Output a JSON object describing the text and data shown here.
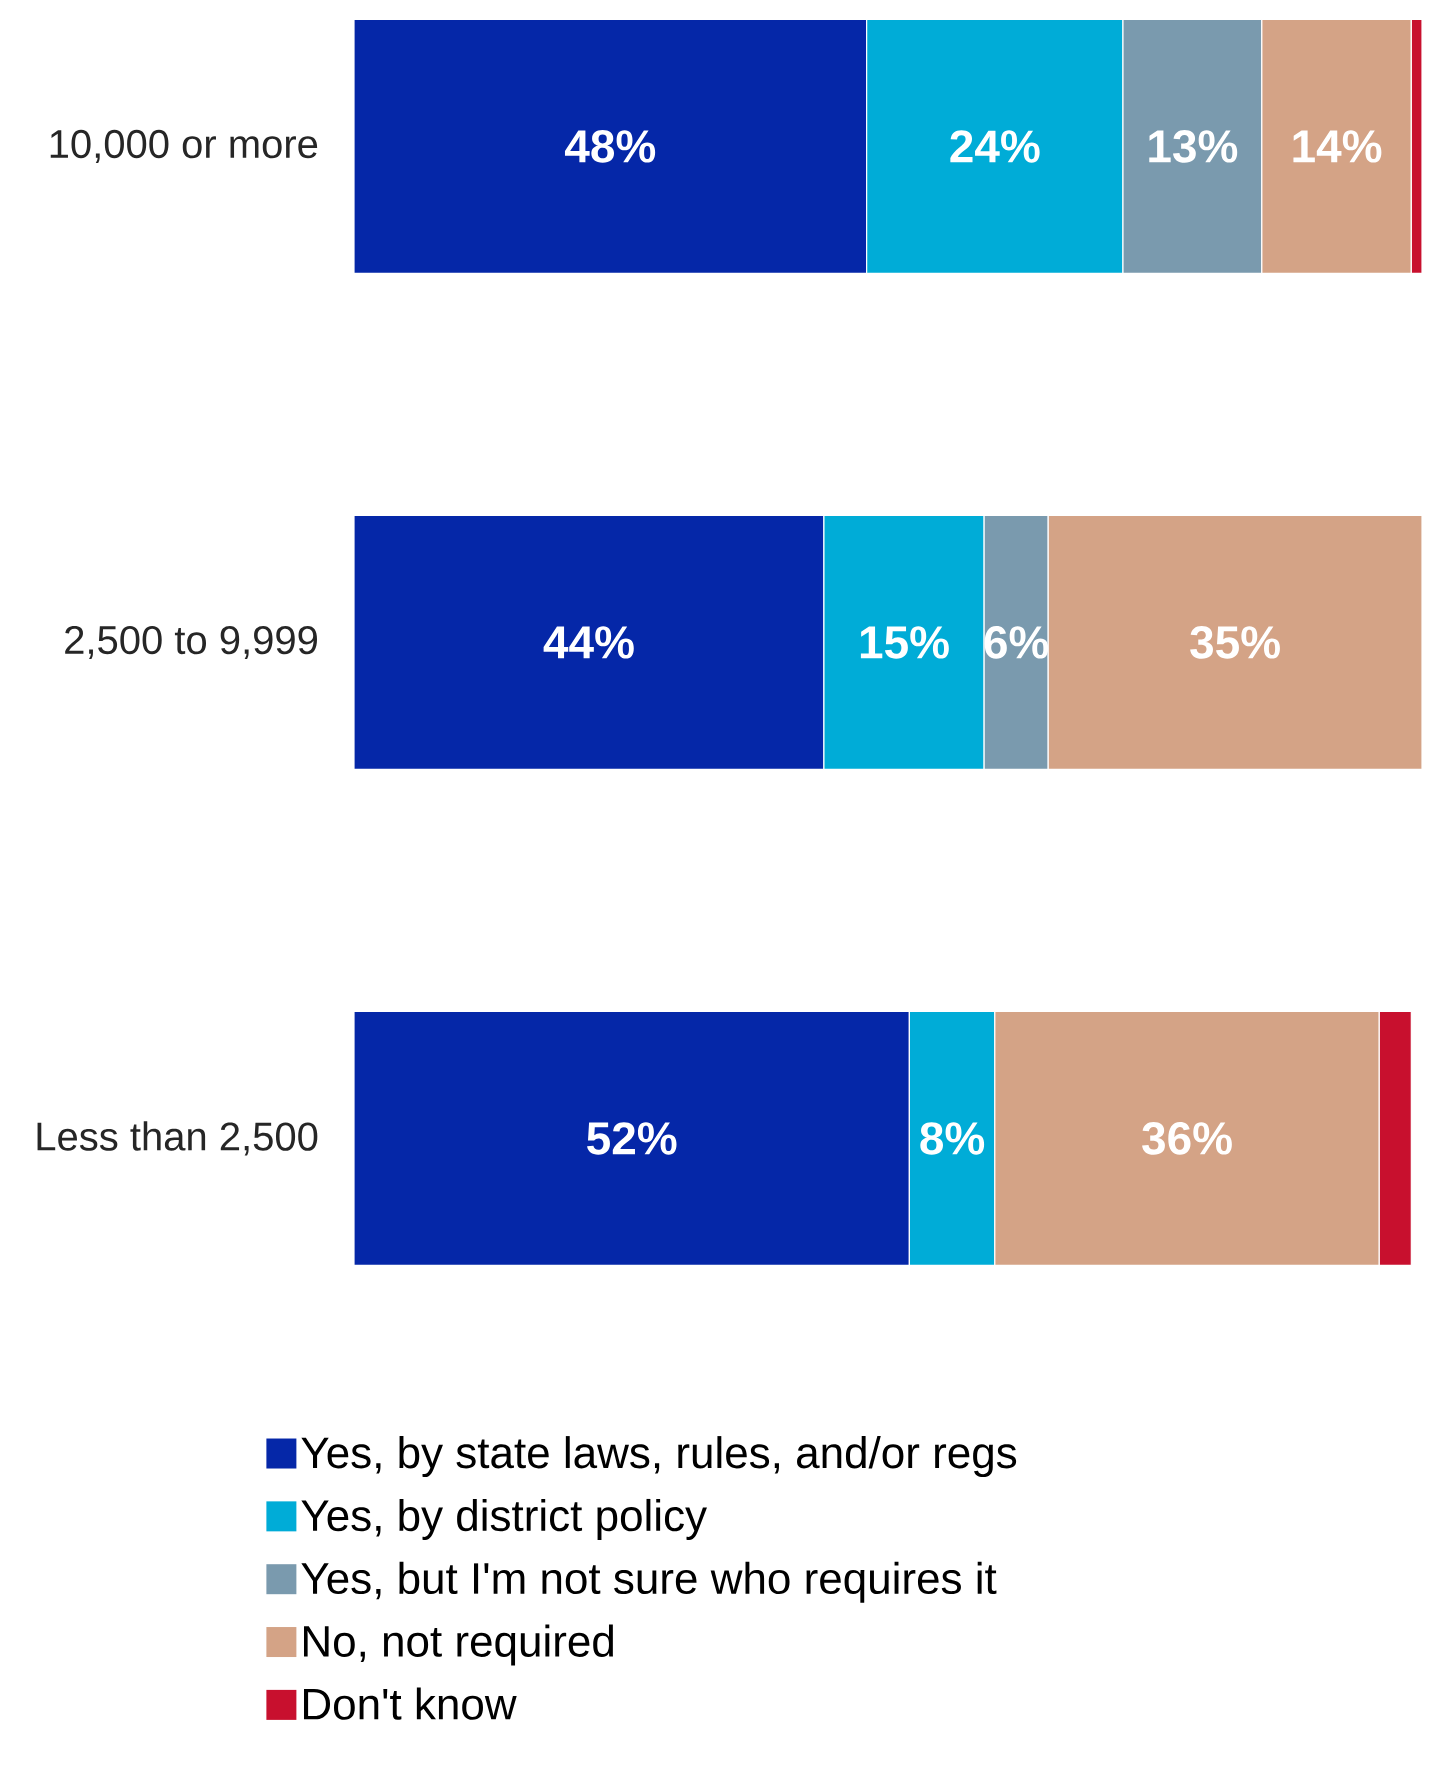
{
  "chart_data": {
    "type": "bar",
    "orientation": "horizontal",
    "stacked": true,
    "legend": "bottom",
    "categories": [
      "10,000 or more",
      "2,500 to 9,999",
      "Less than 2,500"
    ],
    "series": [
      {
        "name": "Yes, by state laws, rules, and/or regs",
        "color": "#0527a8",
        "values": [
          48,
          44,
          52
        ],
        "value_labels": [
          "48%",
          "44%",
          "52%"
        ]
      },
      {
        "name": "Yes, by district policy",
        "color": "#00acd7",
        "values": [
          24,
          15,
          8
        ],
        "value_labels": [
          "24%",
          "15%",
          "8%"
        ]
      },
      {
        "name": "Yes, but I'm not sure who requires it",
        "color": "#7a9aae",
        "values": [
          13,
          6,
          null
        ],
        "value_labels": [
          "13%",
          "6%",
          null
        ]
      },
      {
        "name": "No, not required",
        "color": "#d4a386",
        "values": [
          14,
          35,
          36
        ],
        "value_labels": [
          "14%",
          "35%",
          "36%"
        ]
      },
      {
        "name": "Don't know",
        "color": "#c8102e",
        "values": [
          1,
          null,
          3
        ],
        "value_labels": [
          null,
          null,
          null
        ]
      }
    ]
  }
}
